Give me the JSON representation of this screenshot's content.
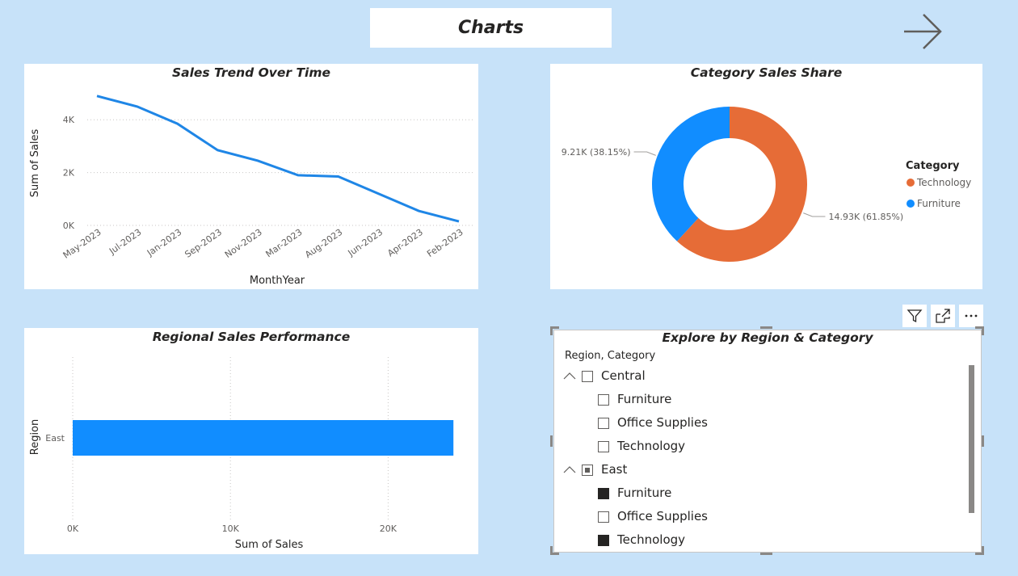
{
  "page": {
    "title": "Charts"
  },
  "colors": {
    "background": "#c7e2f9",
    "line": "#1f86e6",
    "technology": "#e66c37",
    "furniture": "#118dff",
    "bar": "#118dff"
  },
  "icons": {
    "next": "arrow-right-icon",
    "filter": "filter-icon",
    "focus": "focus-mode-icon",
    "more": "more-options-icon"
  },
  "chart_data": [
    {
      "type": "line",
      "title": "Sales Trend Over Time",
      "xlabel": "MonthYear",
      "ylabel": "Sum of Sales",
      "x": [
        "May-2023",
        "Jul-2023",
        "Jan-2023",
        "Sep-2023",
        "Nov-2023",
        "Mar-2023",
        "Aug-2023",
        "Jun-2023",
        "Apr-2023",
        "Feb-2023"
      ],
      "values": [
        4900,
        4500,
        3850,
        2850,
        2450,
        1900,
        1850,
        1200,
        550,
        150
      ],
      "ylim": [
        0,
        5200
      ],
      "yticks": [
        {
          "v": 0,
          "label": "0K"
        },
        {
          "v": 2000,
          "label": "2K"
        },
        {
          "v": 4000,
          "label": "4K"
        }
      ],
      "grid": true
    },
    {
      "type": "pie",
      "title": "Category Sales Share",
      "legend_title": "Category",
      "slices": [
        {
          "name": "Technology",
          "value": 14930,
          "label": "14.93K (61.85%)",
          "color": "#e66c37"
        },
        {
          "name": "Furniture",
          "value": 9210,
          "label": "9.21K (38.15%)",
          "color": "#118dff"
        }
      ],
      "legend": "right"
    },
    {
      "type": "bar",
      "orientation": "horizontal",
      "title": "Regional Sales Performance",
      "xlabel": "Sum of Sales",
      "ylabel": "Region",
      "categories": [
        "East"
      ],
      "values": [
        24140
      ],
      "xlim": [
        0,
        25000
      ],
      "xticks": [
        {
          "v": 0,
          "label": "0K"
        },
        {
          "v": 10000,
          "label": "10K"
        },
        {
          "v": 20000,
          "label": "20K"
        }
      ]
    }
  ],
  "slicer": {
    "title": "Explore by Region & Category",
    "header": "Region, Category",
    "items": [
      {
        "label": "Central",
        "level": 0,
        "state": "unchecked",
        "expandable": true
      },
      {
        "label": "Furniture",
        "level": 1,
        "state": "unchecked",
        "expandable": false
      },
      {
        "label": "Office Supplies",
        "level": 1,
        "state": "unchecked",
        "expandable": false
      },
      {
        "label": "Technology",
        "level": 1,
        "state": "unchecked",
        "expandable": false
      },
      {
        "label": "East",
        "level": 0,
        "state": "partial",
        "expandable": true
      },
      {
        "label": "Furniture",
        "level": 1,
        "state": "checked",
        "expandable": false
      },
      {
        "label": "Office Supplies",
        "level": 1,
        "state": "unchecked",
        "expandable": false
      },
      {
        "label": "Technology",
        "level": 1,
        "state": "checked",
        "expandable": false
      }
    ]
  }
}
